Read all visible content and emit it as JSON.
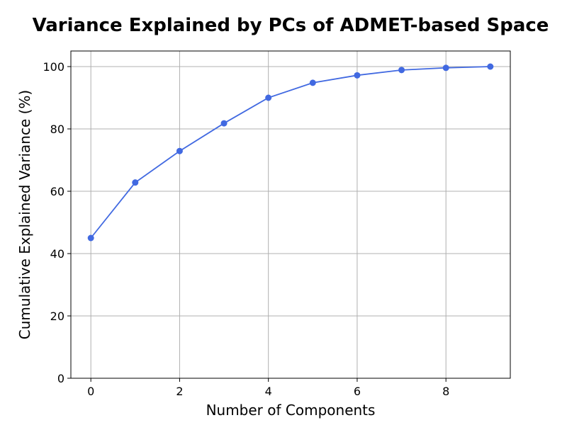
{
  "chart_data": {
    "type": "line",
    "title": "Variance Explained by PCs of ADMET-based Space",
    "xlabel": "Number of Components",
    "ylabel": "Cumulative Explained Variance (%)",
    "x": [
      0,
      1,
      2,
      3,
      4,
      5,
      6,
      7,
      8,
      9
    ],
    "series": [
      {
        "values": [
          45.0,
          62.8,
          72.9,
          81.8,
          90.0,
          94.8,
          97.2,
          98.9,
          99.6,
          100.0
        ]
      }
    ],
    "xlim": [
      -0.45,
      9.45
    ],
    "ylim": [
      0,
      105
    ],
    "xticks": [
      0,
      2,
      4,
      6,
      8
    ],
    "yticks": [
      0,
      20,
      40,
      60,
      80,
      100
    ],
    "grid": true,
    "line_color": "#4169e1"
  }
}
